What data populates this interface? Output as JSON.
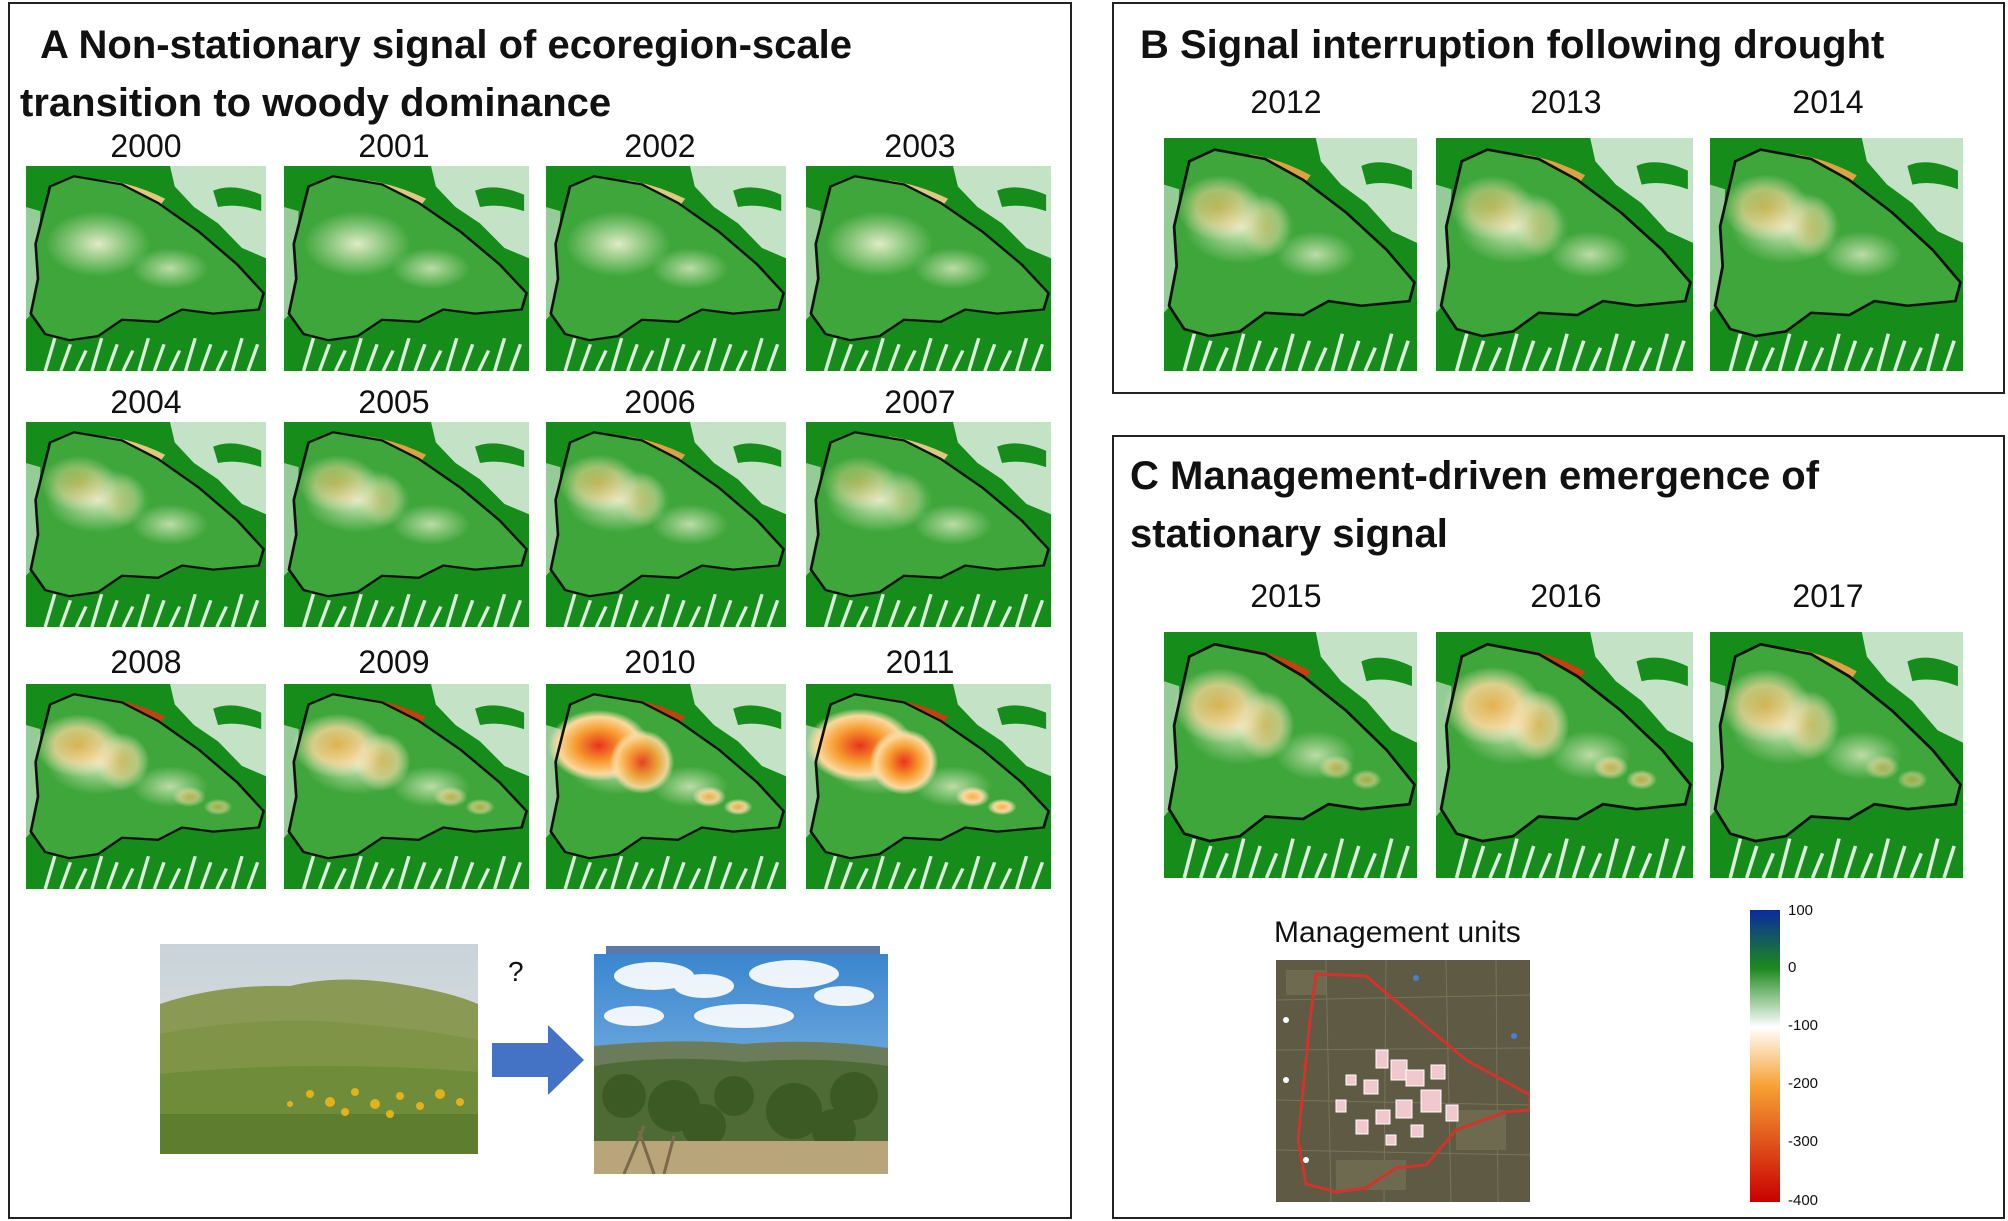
{
  "panels": {
    "A": {
      "title_line1": "A  Non-stationary signal of ecoregion-scale",
      "title_line2": "transition to woody dominance",
      "years": [
        "2000",
        "2001",
        "2002",
        "2003",
        "2004",
        "2005",
        "2006",
        "2007",
        "2008",
        "2009",
        "2010",
        "2011"
      ],
      "question_mark": "?"
    },
    "B": {
      "title": "B  Signal interruption following drought",
      "years": [
        "2012",
        "2013",
        "2014"
      ]
    },
    "C": {
      "title_line1": " C  Management-driven emergence of",
      "title_line2": "stationary signal",
      "years": [
        "2015",
        "2016",
        "2017"
      ],
      "management_label": "Management units"
    }
  },
  "colorbar": {
    "ticks": [
      "100",
      "0",
      "-100",
      "-200",
      "-300",
      "-400"
    ],
    "colors": [
      "#0b2a9e",
      "#1d8a1d",
      "#ffffff",
      "#f7a334",
      "#c80000"
    ]
  },
  "map_intensity": {
    "2000": 0.05,
    "2001": 0.1,
    "2002": 0.1,
    "2003": 0.05,
    "2004": 0.25,
    "2005": 0.3,
    "2006": 0.35,
    "2007": 0.2,
    "2008": 0.55,
    "2009": 0.6,
    "2010": 0.9,
    "2011": 1.0,
    "2012": 0.35,
    "2013": 0.3,
    "2014": 0.4,
    "2015": 0.55,
    "2016": 0.65,
    "2017": 0.5
  }
}
